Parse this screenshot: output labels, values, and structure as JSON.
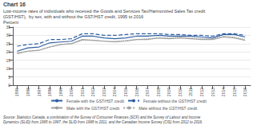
{
  "chart_data": {
    "type": "line",
    "title": "Chart 16",
    "subtitle": [
      "Low-income rates of individuals who received the Goods and Services Tax/Harmonized Sales Tax credit",
      "(GST/HST),  by sex, with and without the GST/HST credit, 1995 to 2016"
    ],
    "ylabel": "Percent",
    "x": [
      1995,
      1996,
      1997,
      1998,
      1999,
      2000,
      2001,
      2002,
      2003,
      2004,
      2005,
      2006,
      2007,
      2008,
      2009,
      2010,
      2011,
      2012,
      2013,
      2014,
      2015,
      2016
    ],
    "xlim": [
      1994.6,
      2016.5
    ],
    "xticks": [
      1995,
      1996,
      1997,
      1998,
      1999,
      2000,
      2001,
      2002,
      2003,
      2004,
      2005,
      2006,
      2007,
      2008,
      2009,
      2010,
      2011,
      2012,
      2013,
      2014,
      2015,
      2016
    ],
    "ylim": [
      0,
      35
    ],
    "yticks": [
      0,
      5,
      10,
      15,
      20,
      25,
      30,
      35
    ],
    "grid": true,
    "legend": "bottom",
    "series": [
      {
        "name": "Female with the GST/HST credit",
        "color": "#2e5fa3",
        "line_style": "solid",
        "values": [
          20.5,
          22.5,
          23.0,
          25.5,
          26.0,
          26.5,
          29.5,
          29.5,
          28.5,
          28.0,
          28.5,
          29.5,
          29.5,
          30.0,
          29.5,
          29.5,
          29.5,
          29.0,
          28.5,
          30.5,
          30.5,
          29.0
        ]
      },
      {
        "name": "Female without the GST/HST credit",
        "color": "#2e5fa3",
        "line_style": "dashed",
        "values": [
          23.5,
          24.5,
          25.0,
          27.5,
          27.5,
          28.0,
          31.0,
          31.0,
          30.0,
          30.0,
          30.5,
          31.0,
          31.0,
          31.0,
          30.5,
          30.5,
          30.0,
          30.0,
          29.5,
          31.0,
          31.0,
          30.0
        ]
      },
      {
        "name": "Male with the GST/HST credit",
        "color": "#a0a0a0",
        "line_style": "solid",
        "values": [
          19.0,
          20.5,
          21.0,
          23.0,
          24.5,
          25.0,
          27.5,
          27.0,
          26.5,
          26.0,
          26.5,
          27.5,
          27.5,
          28.5,
          28.0,
          28.5,
          28.0,
          27.5,
          27.5,
          29.0,
          28.5,
          27.0
        ]
      },
      {
        "name": "Male without the GST/HST credit",
        "color": "#a0a0a0",
        "line_style": "dotted",
        "values": [
          19.5,
          20.5,
          21.0,
          23.0,
          24.5,
          25.0,
          27.0,
          27.0,
          26.5,
          26.5,
          27.0,
          27.5,
          28.0,
          28.5,
          28.5,
          29.0,
          28.5,
          28.0,
          28.0,
          29.5,
          29.0,
          27.5
        ]
      }
    ],
    "source": "Source: Statistics Canada, a combination of the Survey of Consumer Finances (SCF) and the Survey of Labour and Income Dynamics (SLID) from 1995 to 1997, the SLID from 1998 to 2011, and the Canadian Income Survey (CIS) from 2012 to 2016."
  }
}
